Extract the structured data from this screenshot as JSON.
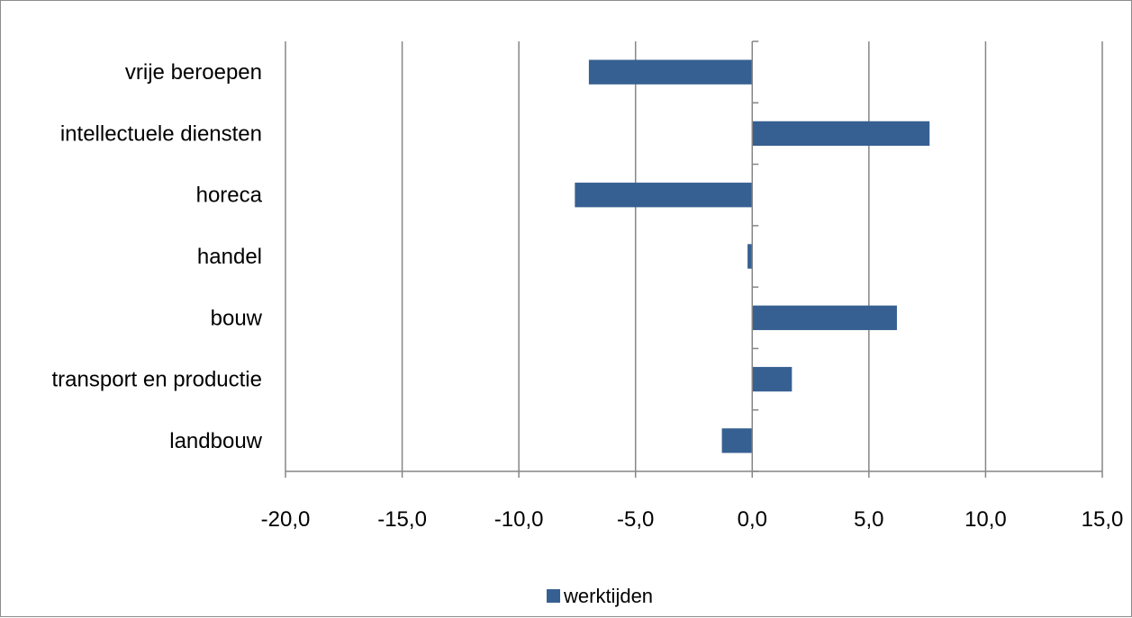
{
  "chart_data": {
    "type": "bar",
    "orientation": "horizontal",
    "categories": [
      "vrije beroepen",
      "intellectuele diensten",
      "horeca",
      "handel",
      "bouw",
      "transport en productie",
      "landbouw"
    ],
    "series": [
      {
        "name": "werktijden",
        "values": [
          -7.0,
          7.6,
          -7.6,
          -0.2,
          6.2,
          1.7,
          -1.3
        ]
      }
    ],
    "xlim": [
      -20,
      15
    ],
    "xticks": [
      -20,
      -15,
      -10,
      -5,
      0,
      5,
      10,
      15
    ],
    "xtick_labels": [
      "-20,0",
      "-15,0",
      "-10,0",
      "-5,0",
      "0,0",
      "5,0",
      "10,0",
      "15,0"
    ],
    "grid": "vertical",
    "legend": "bottom",
    "colors": {
      "bar": "#376092",
      "grid": "#868686",
      "axis": "#868686"
    }
  }
}
